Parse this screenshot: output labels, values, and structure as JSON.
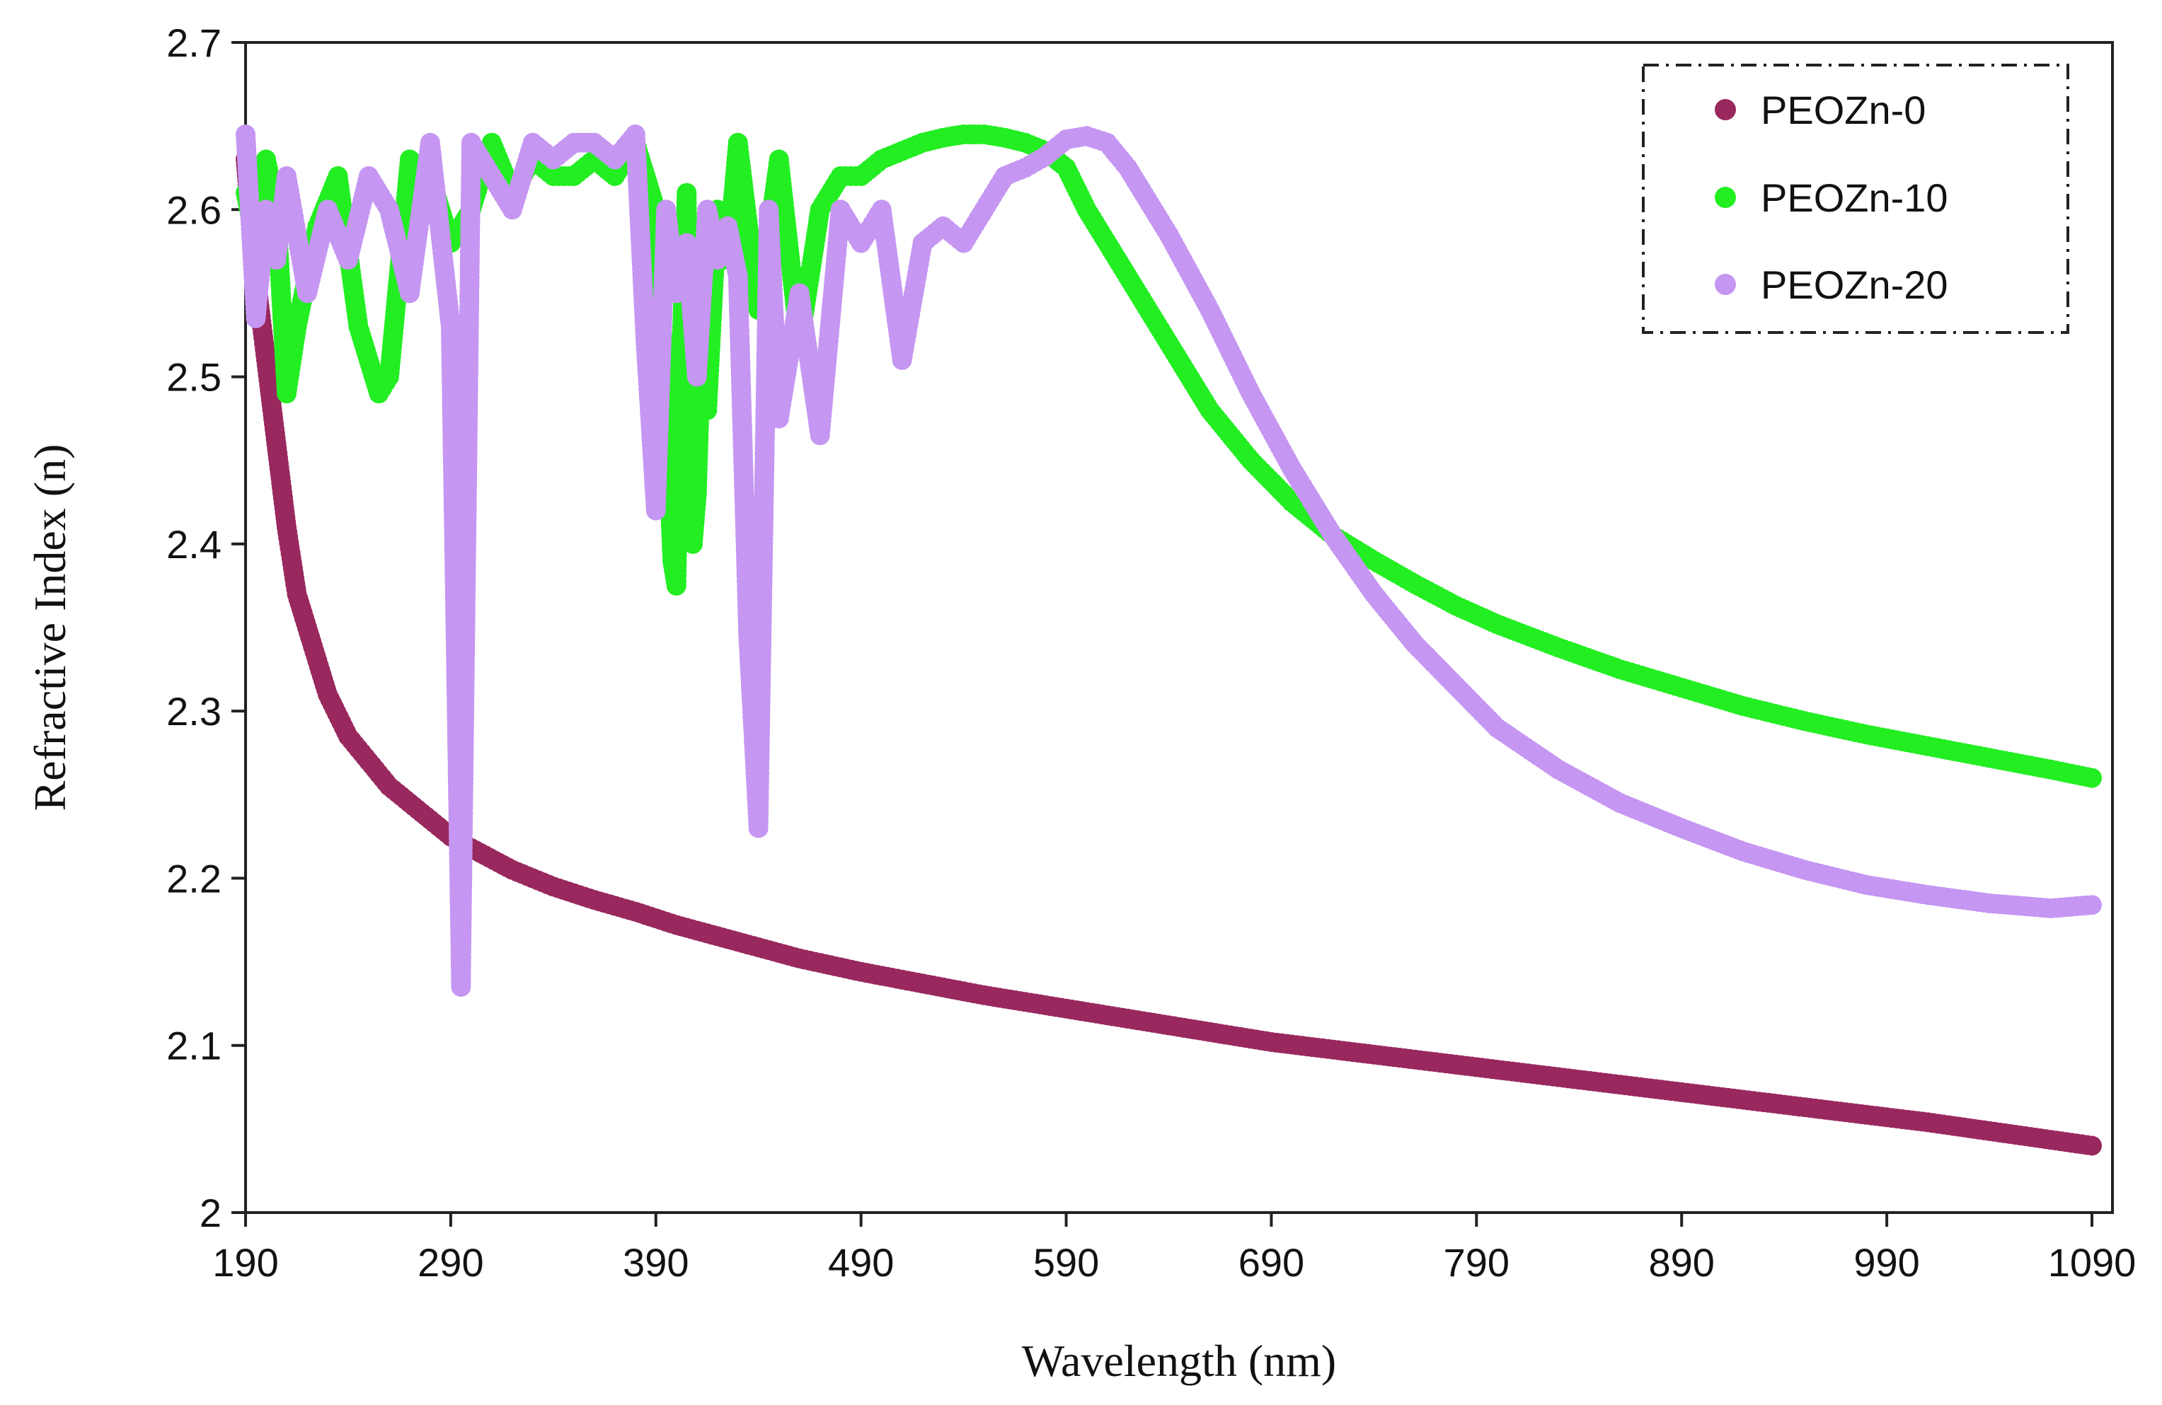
{
  "chart_data": {
    "type": "scatter",
    "title": "",
    "xlabel": "Wavelength (nm)",
    "ylabel": "Refractive Index (n)",
    "xlim": [
      190,
      1100
    ],
    "ylim": [
      2.0,
      2.7
    ],
    "x_ticks": [
      190,
      290,
      390,
      490,
      590,
      690,
      790,
      890,
      990,
      1090
    ],
    "x_tick_labels": [
      "190",
      "290",
      "390",
      "490",
      "590",
      "690",
      "790",
      "890",
      "990",
      "1090"
    ],
    "y_ticks": [
      2.0,
      2.1,
      2.2,
      2.3,
      2.4,
      2.5,
      2.6,
      2.7
    ],
    "y_tick_labels": [
      "2",
      "2.1",
      "2.2",
      "2.3",
      "2.4",
      "2.5",
      "2.6",
      "2.7"
    ],
    "grid": false,
    "legend_position": "top-right",
    "series": [
      {
        "name": "PEOZn-0",
        "color": "#99285f",
        "x": [
          190,
          192,
          195,
          198,
          200,
          205,
          210,
          215,
          220,
          230,
          240,
          250,
          260,
          270,
          280,
          290,
          300,
          320,
          340,
          360,
          380,
          400,
          430,
          460,
          490,
          520,
          550,
          580,
          610,
          650,
          690,
          730,
          770,
          810,
          850,
          890,
          930,
          970,
          1010,
          1050,
          1090
        ],
        "y": [
          2.63,
          2.6,
          2.56,
          2.53,
          2.51,
          2.46,
          2.41,
          2.37,
          2.35,
          2.31,
          2.285,
          2.27,
          2.255,
          2.245,
          2.235,
          2.225,
          2.218,
          2.205,
          2.195,
          2.187,
          2.18,
          2.172,
          2.162,
          2.152,
          2.144,
          2.137,
          2.13,
          2.124,
          2.118,
          2.11,
          2.102,
          2.096,
          2.09,
          2.084,
          2.078,
          2.072,
          2.066,
          2.06,
          2.054,
          2.047,
          2.04
        ]
      },
      {
        "name": "PEOZn-10",
        "color": "#22ee22",
        "x": [
          190,
          195,
          200,
          205,
          210,
          215,
          225,
          235,
          245,
          255,
          260,
          270,
          280,
          290,
          300,
          310,
          320,
          330,
          340,
          350,
          360,
          370,
          380,
          385,
          390,
          395,
          398,
          400,
          402,
          405,
          408,
          410,
          412,
          415,
          420,
          425,
          430,
          440,
          450,
          460,
          470,
          480,
          490,
          500,
          510,
          520,
          530,
          540,
          550,
          560,
          570,
          580,
          590,
          600,
          620,
          640,
          660,
          680,
          700,
          720,
          740,
          760,
          780,
          800,
          830,
          860,
          890,
          920,
          950,
          980,
          1010,
          1040,
          1070,
          1090
        ],
        "y": [
          2.61,
          2.58,
          2.63,
          2.6,
          2.49,
          2.53,
          2.59,
          2.62,
          2.53,
          2.49,
          2.5,
          2.63,
          2.62,
          2.58,
          2.6,
          2.64,
          2.61,
          2.63,
          2.62,
          2.62,
          2.63,
          2.62,
          2.64,
          2.62,
          2.6,
          2.48,
          2.39,
          2.375,
          2.5,
          2.61,
          2.4,
          2.43,
          2.51,
          2.48,
          2.6,
          2.57,
          2.64,
          2.54,
          2.63,
          2.52,
          2.6,
          2.62,
          2.62,
          2.63,
          2.635,
          2.64,
          2.643,
          2.645,
          2.645,
          2.643,
          2.64,
          2.635,
          2.625,
          2.6,
          2.56,
          2.52,
          2.48,
          2.45,
          2.425,
          2.405,
          2.39,
          2.376,
          2.363,
          2.352,
          2.338,
          2.325,
          2.314,
          2.303,
          2.294,
          2.286,
          2.279,
          2.272,
          2.265,
          2.26
        ]
      },
      {
        "name": "PEOZn-20",
        "color": "#c596f2",
        "x": [
          190,
          195,
          200,
          205,
          210,
          220,
          230,
          240,
          250,
          260,
          270,
          280,
          290,
          295,
          300,
          310,
          320,
          330,
          340,
          350,
          360,
          370,
          380,
          385,
          390,
          395,
          400,
          405,
          410,
          415,
          420,
          425,
          430,
          435,
          440,
          445,
          450,
          460,
          470,
          480,
          490,
          500,
          510,
          520,
          530,
          540,
          550,
          560,
          570,
          580,
          590,
          600,
          610,
          620,
          640,
          660,
          680,
          700,
          720,
          740,
          760,
          780,
          800,
          830,
          860,
          890,
          920,
          950,
          980,
          1010,
          1040,
          1070,
          1090
        ],
        "y": [
          2.645,
          2.535,
          2.6,
          2.57,
          2.62,
          2.55,
          2.6,
          2.57,
          2.62,
          2.6,
          2.55,
          2.64,
          2.53,
          2.135,
          2.64,
          2.62,
          2.6,
          2.64,
          2.63,
          2.64,
          2.64,
          2.63,
          2.645,
          2.52,
          2.42,
          2.6,
          2.55,
          2.58,
          2.5,
          2.6,
          2.57,
          2.59,
          2.56,
          2.345,
          2.23,
          2.6,
          2.475,
          2.55,
          2.465,
          2.6,
          2.58,
          2.6,
          2.51,
          2.58,
          2.59,
          2.58,
          2.6,
          2.62,
          2.625,
          2.632,
          2.642,
          2.644,
          2.64,
          2.625,
          2.585,
          2.54,
          2.49,
          2.445,
          2.405,
          2.37,
          2.34,
          2.315,
          2.29,
          2.265,
          2.245,
          2.23,
          2.216,
          2.205,
          2.196,
          2.19,
          2.185,
          2.182,
          2.184
        ]
      }
    ]
  }
}
